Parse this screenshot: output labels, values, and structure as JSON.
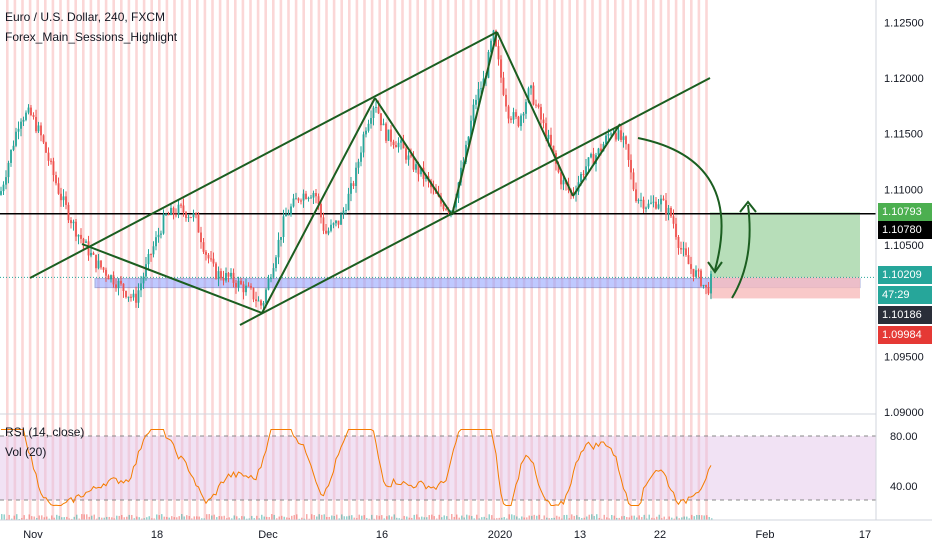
{
  "header": {
    "symbol": "Euro / U.S. Dollar, 240, FXCM",
    "indicator": "Forex_Main_Sessions_Highlight"
  },
  "rsi_panel": {
    "rsi_label": "RSI (14, close)",
    "vol_label": "Vol (20)"
  },
  "price_labels": [
    {
      "text": "1.10793",
      "bg": "#4caf50",
      "fg": "#ffffff"
    },
    {
      "text": "1.10780",
      "bg": "#000000",
      "fg": "#ffffff"
    },
    {
      "text": "1.10209",
      "bg": "#26a69a",
      "fg": "#ffffff"
    },
    {
      "text": "47:29",
      "bg": "#26a69a",
      "fg": "#ffffff"
    },
    {
      "text": "1.10186",
      "bg": "#2a2e39",
      "fg": "#ffffff"
    },
    {
      "text": "1.09984",
      "bg": "#e53935",
      "fg": "#ffffff"
    }
  ],
  "colors": {
    "up": "#26a69a",
    "down": "#ef5350",
    "trendline": "#1b5e20",
    "session_stripe": "#f7b7b7",
    "long_profit": "#a5d6a7",
    "long_stop": "#f8bbbb",
    "support_zone": "#8c9eff",
    "rsi": "#f57c00",
    "rsi_band": "#e1bee7"
  },
  "chart_data": {
    "type": "candlestick",
    "title": "Euro / U.S. Dollar, 240, FXCM",
    "ylim": [
      1.09,
      1.127
    ],
    "y_ticks": [
      "1.12500",
      "1.12000",
      "1.11500",
      "1.11000",
      "1.10500",
      "1.09500",
      "1.09000"
    ],
    "x_ticks": [
      "Nov",
      "18",
      "Dec",
      "16",
      "2020",
      "13",
      "22",
      "Feb",
      "17"
    ],
    "price_line": 1.1078,
    "price_path": [
      [
        0,
        1.1095
      ],
      [
        10,
        1.113
      ],
      [
        20,
        1.1165
      ],
      [
        30,
        1.1168
      ],
      [
        40,
        1.115
      ],
      [
        60,
        1.1095
      ],
      [
        75,
        1.1065
      ],
      [
        95,
        1.1035
      ],
      [
        115,
        1.1018
      ],
      [
        135,
        1.1
      ],
      [
        150,
        1.104
      ],
      [
        165,
        1.1075
      ],
      [
        180,
        1.1082
      ],
      [
        195,
        1.1075
      ],
      [
        205,
        1.1045
      ],
      [
        215,
        1.1025
      ],
      [
        230,
        1.102
      ],
      [
        250,
        1.1008
      ],
      [
        262,
        1.0995
      ],
      [
        272,
        1.103
      ],
      [
        285,
        1.1075
      ],
      [
        300,
        1.1095
      ],
      [
        315,
        1.1098
      ],
      [
        325,
        1.106
      ],
      [
        340,
        1.1072
      ],
      [
        355,
        1.111
      ],
      [
        365,
        1.1155
      ],
      [
        375,
        1.118
      ],
      [
        385,
        1.115
      ],
      [
        400,
        1.114
      ],
      [
        410,
        1.1125
      ],
      [
        425,
        1.111
      ],
      [
        440,
        1.1088
      ],
      [
        452,
        1.1082
      ],
      [
        465,
        1.113
      ],
      [
        475,
        1.118
      ],
      [
        485,
        1.12
      ],
      [
        493,
        1.124
      ],
      [
        500,
        1.1205
      ],
      [
        508,
        1.117
      ],
      [
        518,
        1.116
      ],
      [
        530,
        1.119
      ],
      [
        540,
        1.1165
      ],
      [
        550,
        1.114
      ],
      [
        560,
        1.111
      ],
      [
        572,
        1.1095
      ],
      [
        585,
        1.112
      ],
      [
        600,
        1.1135
      ],
      [
        612,
        1.1155
      ],
      [
        625,
        1.114
      ],
      [
        635,
        1.1095
      ],
      [
        648,
        1.1085
      ],
      [
        660,
        1.109
      ],
      [
        672,
        1.1075
      ],
      [
        680,
        1.1048
      ],
      [
        690,
        1.103
      ],
      [
        700,
        1.102
      ],
      [
        707,
        1.1008
      ],
      [
        712,
        1.1021
      ]
    ],
    "rsi_ticks": [
      "80.00",
      "40.00"
    ]
  }
}
